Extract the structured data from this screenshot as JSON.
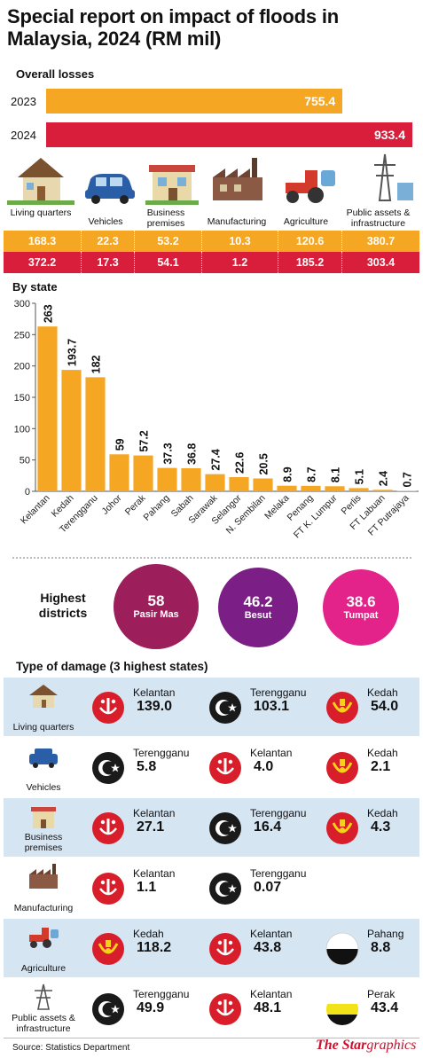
{
  "title": "Special report on impact of floods in Malaysia, 2024 (RM mil)",
  "overall": {
    "heading": "Overall losses",
    "rows": [
      {
        "year": "2023",
        "value": 755.4,
        "label": "755.4",
        "color": "#f5a623"
      },
      {
        "year": "2024",
        "value": 933.4,
        "label": "933.4",
        "color": "#d81e3a"
      }
    ]
  },
  "categories": {
    "labels": [
      "Living quarters",
      "Vehicles",
      "Business premises",
      "Manufacturing",
      "Agriculture",
      "Public assets & infrastructure"
    ],
    "row2023": [
      "168.3",
      "22.3",
      "53.2",
      "10.3",
      "120.6",
      "380.7"
    ],
    "row2024": [
      "372.2",
      "17.3",
      "54.1",
      "1.2",
      "185.2",
      "303.4"
    ]
  },
  "by_state_heading": "By state",
  "districts": {
    "heading": "Highest districts",
    "items": [
      {
        "value": "58",
        "name": "Pasir Mas",
        "color": "#9c1f5c"
      },
      {
        "value": "46.2",
        "name": "Besut",
        "color": "#7b1e86"
      },
      {
        "value": "38.6",
        "name": "Tumpat",
        "color": "#e3238a"
      }
    ]
  },
  "damage": {
    "heading": "Type of damage (3 highest states)",
    "rows": [
      {
        "category": "Living quarters",
        "entries": [
          {
            "state": "Kelantan",
            "value": "139.0",
            "flag": "kelantan"
          },
          {
            "state": "Terengganu",
            "value": "103.1",
            "flag": "terengganu"
          },
          {
            "state": "Kedah",
            "value": "54.0",
            "flag": "kedah"
          }
        ]
      },
      {
        "category": "Vehicles",
        "entries": [
          {
            "state": "Terengganu",
            "value": "5.8",
            "flag": "terengganu"
          },
          {
            "state": "Kelantan",
            "value": "4.0",
            "flag": "kelantan"
          },
          {
            "state": "Kedah",
            "value": "2.1",
            "flag": "kedah"
          }
        ]
      },
      {
        "category": "Business premises",
        "entries": [
          {
            "state": "Kelantan",
            "value": "27.1",
            "flag": "kelantan"
          },
          {
            "state": "Terengganu",
            "value": "16.4",
            "flag": "terengganu"
          },
          {
            "state": "Kedah",
            "value": "4.3",
            "flag": "kedah"
          }
        ]
      },
      {
        "category": "Manufacturing",
        "entries": [
          {
            "state": "Kelantan",
            "value": "1.1",
            "flag": "kelantan"
          },
          {
            "state": "Terengganu",
            "value": "0.07",
            "flag": "terengganu"
          }
        ]
      },
      {
        "category": "Agriculture",
        "entries": [
          {
            "state": "Kedah",
            "value": "118.2",
            "flag": "kedah"
          },
          {
            "state": "Kelantan",
            "value": "43.8",
            "flag": "kelantan"
          },
          {
            "state": "Pahang",
            "value": "8.8",
            "flag": "pahang"
          }
        ]
      },
      {
        "category": "Public assets & infrastructure",
        "entries": [
          {
            "state": "Terengganu",
            "value": "49.9",
            "flag": "terengganu"
          },
          {
            "state": "Kelantan",
            "value": "48.1",
            "flag": "kelantan"
          },
          {
            "state": "Perak",
            "value": "43.4",
            "flag": "perak"
          }
        ]
      }
    ]
  },
  "source": "Source: Statistics Department",
  "brand": "The Star graphics",
  "colors": {
    "orange": "#f5a623",
    "red": "#d81e3a",
    "shade": "#d6e5f2"
  },
  "chart_data": {
    "type": "bar",
    "title": "By state",
    "categories": [
      "Kelantan",
      "Kedah",
      "Terengganu",
      "Johor",
      "Perak",
      "Pahang",
      "Sabah",
      "Sarawak",
      "Selangor",
      "N. Sembilan",
      "Melaka",
      "Penang",
      "FT K. Lumpur",
      "Perlis",
      "FT Labuan",
      "FT Putrajaya"
    ],
    "values": [
      263,
      193.7,
      182,
      59,
      57.2,
      37.3,
      36.8,
      27.4,
      22.6,
      20.5,
      8.9,
      8.7,
      8.1,
      5.1,
      2.4,
      0.7
    ],
    "value_labels": [
      "263",
      "193.7",
      "182",
      "59",
      "57.2",
      "37.3",
      "36.8",
      "27.4",
      "22.6",
      "20.5",
      "8.9",
      "8.7",
      "8.1",
      "5.1",
      "2.4",
      "0.7"
    ],
    "yticks": [
      0,
      50,
      100,
      150,
      200,
      250,
      300
    ],
    "ylim": [
      0,
      300
    ],
    "grid": false,
    "bar_color": "#f5a623"
  }
}
